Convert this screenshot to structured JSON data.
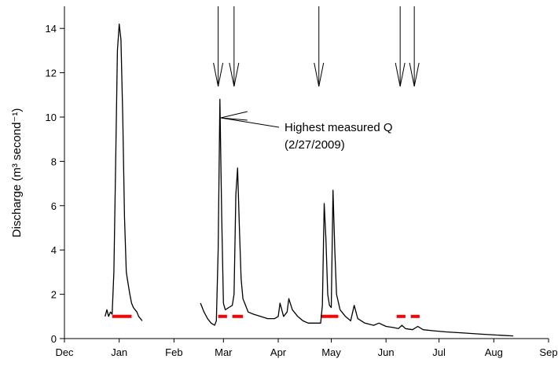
{
  "chart_data": {
    "type": "line",
    "ylabel": "Discharge (m³ second⁻¹)",
    "xlabel": "",
    "x_axis_type": "time",
    "x_ticks": [
      "Dec",
      "Jan",
      "Feb",
      "Mar",
      "Apr",
      "May",
      "Jun",
      "Jul",
      "Aug",
      "Sep"
    ],
    "y_ticks": [
      0,
      2,
      4,
      6,
      8,
      10,
      12,
      14
    ],
    "ylim": [
      0,
      15
    ],
    "grid": false,
    "series": [
      {
        "color": "#000000",
        "segments": [
          [
            [
              "2008-12-24",
              1.0
            ],
            [
              "2008-12-25",
              1.3
            ],
            [
              "2008-12-26",
              1.0
            ],
            [
              "2008-12-27",
              1.2
            ],
            [
              "2008-12-28",
              1.1
            ],
            [
              "2008-12-29",
              3.0
            ],
            [
              "2008-12-30",
              8.0
            ],
            [
              "2008-12-31",
              13.0
            ],
            [
              "2009-01-01",
              14.2
            ],
            [
              "2009-01-02",
              13.5
            ],
            [
              "2009-01-03",
              10.0
            ],
            [
              "2009-01-04",
              5.5
            ],
            [
              "2009-01-05",
              3.0
            ],
            [
              "2009-01-06",
              2.5
            ],
            [
              "2009-01-07",
              2.0
            ],
            [
              "2009-01-08",
              1.6
            ],
            [
              "2009-01-09",
              1.4
            ],
            [
              "2009-01-10",
              1.3
            ],
            [
              "2009-01-11",
              1.2
            ],
            [
              "2009-01-12",
              1.0
            ],
            [
              "2009-01-13",
              0.9
            ],
            [
              "2009-01-14",
              0.8
            ]
          ],
          [
            [
              "2009-02-16",
              1.6
            ],
            [
              "2009-02-18",
              1.2
            ],
            [
              "2009-02-20",
              0.9
            ],
            [
              "2009-02-22",
              0.7
            ],
            [
              "2009-02-24",
              0.6
            ],
            [
              "2009-02-25",
              0.8
            ],
            [
              "2009-02-26",
              4.0
            ],
            [
              "2009-02-27",
              10.8
            ],
            [
              "2009-02-28",
              5.5
            ],
            [
              "2009-03-01",
              1.6
            ],
            [
              "2009-03-02",
              1.3
            ],
            [
              "2009-03-04",
              1.4
            ],
            [
              "2009-03-06",
              1.5
            ],
            [
              "2009-03-07",
              2.0
            ],
            [
              "2009-03-08",
              6.5
            ],
            [
              "2009-03-09",
              7.7
            ],
            [
              "2009-03-10",
              5.0
            ],
            [
              "2009-03-11",
              2.7
            ],
            [
              "2009-03-12",
              1.8
            ],
            [
              "2009-03-15",
              1.2
            ],
            [
              "2009-03-18",
              1.1
            ],
            [
              "2009-03-22",
              1.0
            ],
            [
              "2009-03-26",
              0.9
            ],
            [
              "2009-03-30",
              0.9
            ],
            [
              "2009-04-01",
              1.0
            ],
            [
              "2009-04-02",
              1.6
            ],
            [
              "2009-04-04",
              1.0
            ],
            [
              "2009-04-06",
              1.2
            ],
            [
              "2009-04-07",
              1.8
            ],
            [
              "2009-04-09",
              1.3
            ],
            [
              "2009-04-12",
              1.0
            ],
            [
              "2009-04-15",
              0.8
            ],
            [
              "2009-04-18",
              0.7
            ],
            [
              "2009-04-22",
              0.7
            ],
            [
              "2009-04-25",
              0.7
            ],
            [
              "2009-04-26",
              1.5
            ],
            [
              "2009-04-27",
              6.1
            ],
            [
              "2009-04-28",
              4.5
            ],
            [
              "2009-04-29",
              2.0
            ],
            [
              "2009-04-30",
              1.5
            ],
            [
              "2009-05-01",
              1.4
            ],
            [
              "2009-05-02",
              6.7
            ],
            [
              "2009-05-03",
              4.0
            ],
            [
              "2009-05-04",
              2.0
            ],
            [
              "2009-05-06",
              1.3
            ],
            [
              "2009-05-09",
              1.0
            ],
            [
              "2009-05-12",
              0.8
            ],
            [
              "2009-05-14",
              1.5
            ],
            [
              "2009-05-16",
              0.9
            ],
            [
              "2009-05-20",
              0.7
            ],
            [
              "2009-05-25",
              0.6
            ],
            [
              "2009-05-28",
              0.7
            ],
            [
              "2009-06-01",
              0.55
            ],
            [
              "2009-06-05",
              0.5
            ],
            [
              "2009-06-08",
              0.45
            ],
            [
              "2009-06-10",
              0.6
            ],
            [
              "2009-06-12",
              0.45
            ],
            [
              "2009-06-16",
              0.4
            ],
            [
              "2009-06-19",
              0.55
            ],
            [
              "2009-06-22",
              0.4
            ],
            [
              "2009-06-28",
              0.35
            ],
            [
              "2009-07-05",
              0.3
            ],
            [
              "2009-07-15",
              0.25
            ],
            [
              "2009-07-25",
              0.2
            ],
            [
              "2009-08-05",
              0.15
            ],
            [
              "2009-08-12",
              0.12
            ]
          ]
        ]
      }
    ],
    "red_bars": [
      {
        "start": "2008-12-28",
        "end": "2009-01-08",
        "y": 1.0
      },
      {
        "start": "2009-02-26",
        "end": "2009-03-03",
        "y": 1.0
      },
      {
        "start": "2009-03-06",
        "end": "2009-03-12",
        "y": 1.0
      },
      {
        "start": "2009-04-25",
        "end": "2009-05-05",
        "y": 1.0
      },
      {
        "start": "2009-06-07",
        "end": "2009-06-12",
        "y": 1.0
      },
      {
        "start": "2009-06-15",
        "end": "2009-06-20",
        "y": 1.0
      }
    ],
    "top_arrows": [
      "2009-02-26",
      "2009-03-07",
      "2009-04-24",
      "2009-06-09",
      "2009-06-17"
    ],
    "annotation": {
      "line1": "Highest measured Q",
      "line2": "(2/27/2009)",
      "target_date": "2009-02-27",
      "target_y": 10.0
    },
    "colors": {
      "line": "#000000",
      "bars": "#ff0000"
    }
  }
}
